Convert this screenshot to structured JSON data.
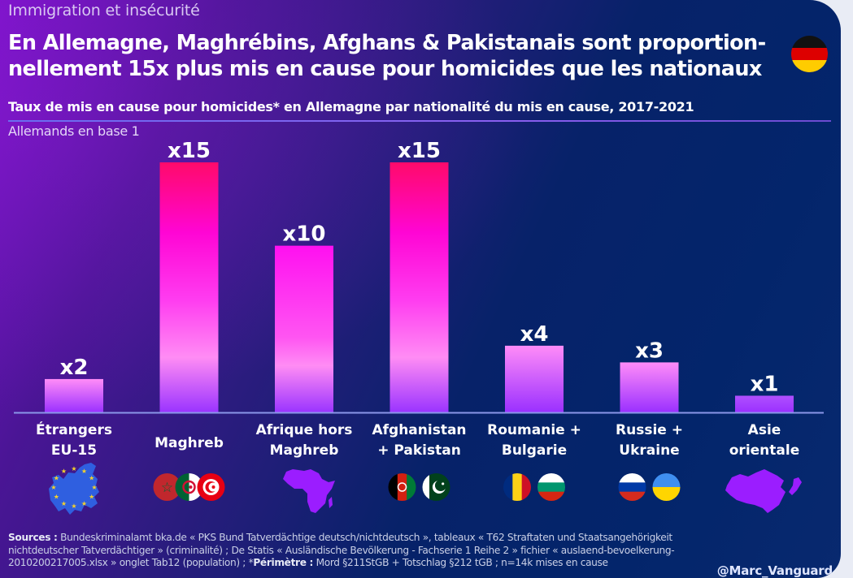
{
  "header": {
    "kicker": "Immigration et insécurité",
    "headline_line1": "En Allemagne, Maghrébins, Afghans & Pakistanais sont proportion-",
    "headline_line2": "nellement 15x plus mis en cause pour homicides que les nationaux",
    "flag_icon": "germany-flag-icon"
  },
  "chart_data": {
    "type": "bar",
    "title": "Taux de mis en cause pour homicides* en Allemagne par nationalité du mis en cause, 2017-2021",
    "ylabel": "Allemands en base 1",
    "xlabel": "",
    "ylim": [
      0,
      15
    ],
    "grid": false,
    "categories": [
      [
        "Étrangers",
        "EU-15"
      ],
      [
        "Maghreb"
      ],
      [
        "Afrique hors",
        "Maghreb"
      ],
      [
        "Afghanistan",
        "+ Pakistan"
      ],
      [
        "Roumanie +",
        "Bulgarie"
      ],
      [
        "Russie +",
        "Ukraine"
      ],
      [
        "Asie",
        "orientale"
      ]
    ],
    "values": [
      2,
      15,
      10,
      15,
      4,
      3,
      1
    ],
    "data_labels": [
      "x2",
      "x15",
      "x10",
      "x15",
      "x4",
      "x3",
      "x1"
    ],
    "category_icons": [
      [
        "eu-map-icon"
      ],
      [
        "morocco-flag-icon",
        "algeria-flag-icon",
        "tunisia-flag-icon"
      ],
      [
        "africa-map-icon"
      ],
      [
        "afghanistan-flag-icon",
        "pakistan-flag-icon"
      ],
      [
        "romania-flag-icon",
        "bulgaria-flag-icon"
      ],
      [
        "russia-flag-icon",
        "ukraine-flag-icon"
      ],
      [
        "east-asia-map-icon"
      ]
    ]
  },
  "colors": {
    "bar_top": "#ff0a6a",
    "bar_mid": "#ff10e6",
    "bar_light": "#ff8cf4",
    "bar_bottom": "#9a34ff",
    "axis": "#8a96e8",
    "map_fill": "#9b1dff",
    "eu_fill": "#2f5fe0",
    "eu_stars": "#f4d12b"
  },
  "footer": {
    "sources_label": "Sources :",
    "sources_line1": " Bundeskriminalamt bka.de « PKS Bund Tatverdächtige deutsch/nichtdeutsch », tableaux « T62 Straftaten und Staatsangehörigkeit",
    "sources_line2": "nichtdeutscher Tatverdächtiger » (criminalité) ; De Statis « Ausländische Bevölkerung - Fachserie 1 Reihe 2 » fichier « auslaend-bevoelkerung-",
    "sources_line3a": "2010200217005.xlsx » onglet Tab12 (population) ; *",
    "perimetre_label": "Périmètre :",
    "sources_line3b": " Mord §211StGB + Totschlag §212 tGB ; n=14k mises en cause",
    "handle": "@Marc_Vanguard"
  }
}
